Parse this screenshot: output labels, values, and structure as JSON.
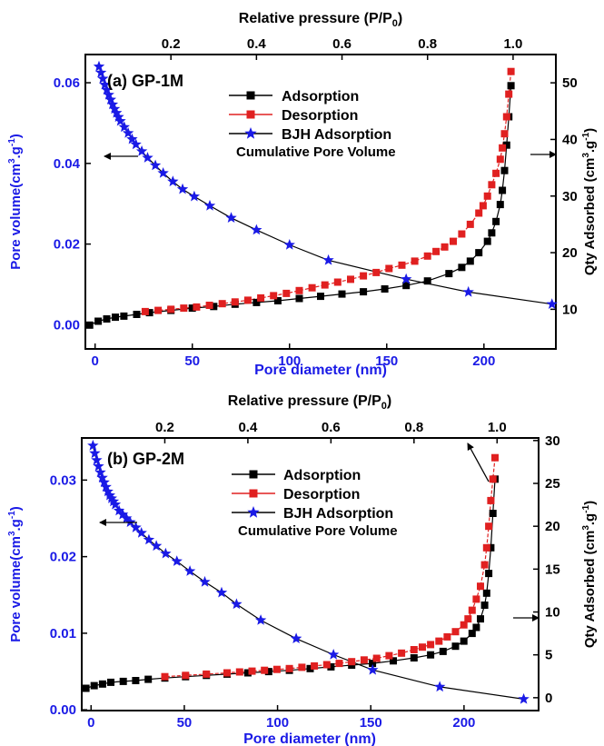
{
  "colors": {
    "left_axis": "#1a1ae6",
    "right_axis": "#000000",
    "adsorption": "#000000",
    "desorption": "#e02020",
    "bjh": "#1a1ae6"
  },
  "chart_data": [
    {
      "type": "line",
      "panel_label": "(a) GP-1M",
      "xlabel": "Pore diameter (nm)",
      "x2label": "Relative pressure (P/P0)",
      "ylabel": "Pore volume(cm3.g-1)",
      "y2label": "Qty Adsorbed (cm3.g-1)",
      "xlim": [
        -5,
        237
      ],
      "ylim": [
        -0.006,
        0.067
      ],
      "x2lim": [
        0.0,
        1.1
      ],
      "y2lim": [
        3,
        55
      ],
      "x_ticks": [
        0,
        50,
        100,
        150,
        200
      ],
      "y_ticks": [
        0.0,
        0.02,
        0.04,
        0.06
      ],
      "y_tick_labels": [
        "0.00",
        "0.02",
        "0.04",
        "0.06"
      ],
      "x2_ticks": [
        0.2,
        0.4,
        0.6,
        0.8,
        1.0
      ],
      "y2_ticks": [
        10,
        20,
        30,
        40,
        50
      ],
      "grid": false,
      "legend_position": "top-center",
      "legend": [
        "Adsorption",
        "Desorption",
        "BJH Adsorption",
        "Cumulative Pore Volume"
      ],
      "series": [
        {
          "name": "Adsorption",
          "axis": "right",
          "marker": "square",
          "x": [
            0.01,
            0.03,
            0.05,
            0.07,
            0.09,
            0.12,
            0.15,
            0.2,
            0.25,
            0.3,
            0.35,
            0.4,
            0.45,
            0.5,
            0.55,
            0.6,
            0.65,
            0.7,
            0.75,
            0.8,
            0.85,
            0.88,
            0.9,
            0.92,
            0.94,
            0.95,
            0.96,
            0.97,
            0.975,
            0.98,
            0.985,
            0.99,
            0.995
          ],
          "y": [
            7.2,
            7.9,
            8.3,
            8.6,
            8.8,
            9.1,
            9.4,
            9.8,
            10.2,
            10.5,
            10.9,
            11.2,
            11.5,
            11.9,
            12.3,
            12.7,
            13.1,
            13.6,
            14.2,
            15.0,
            16.3,
            17.4,
            18.5,
            20.0,
            22.0,
            23.5,
            25.5,
            28.5,
            31.0,
            34.5,
            39.0,
            44.0,
            49.5
          ]
        },
        {
          "name": "Desorption",
          "axis": "right",
          "marker": "square",
          "x": [
            0.995,
            0.99,
            0.985,
            0.98,
            0.975,
            0.97,
            0.96,
            0.95,
            0.94,
            0.93,
            0.92,
            0.9,
            0.88,
            0.86,
            0.84,
            0.82,
            0.8,
            0.77,
            0.74,
            0.71,
            0.68,
            0.65,
            0.62,
            0.59,
            0.56,
            0.53,
            0.5,
            0.47,
            0.44,
            0.41,
            0.38,
            0.35,
            0.32,
            0.29,
            0.26,
            0.23,
            0.2,
            0.17,
            0.14
          ],
          "y": [
            52.0,
            48.0,
            44.0,
            41.0,
            38.5,
            36.5,
            34.0,
            32.0,
            30.0,
            28.3,
            27.0,
            25.0,
            23.3,
            22.0,
            21.0,
            20.2,
            19.4,
            18.5,
            17.8,
            17.2,
            16.5,
            15.9,
            15.3,
            14.8,
            14.3,
            13.8,
            13.3,
            12.8,
            12.4,
            12.0,
            11.6,
            11.3,
            11.0,
            10.7,
            10.4,
            10.2,
            10.0,
            9.8,
            9.6
          ]
        },
        {
          "name": "BJH Adsorption",
          "axis": "left",
          "marker": "star",
          "x": [
            2,
            3,
            4,
            5,
            6,
            7,
            8,
            9,
            10,
            11,
            12,
            13,
            15,
            17,
            19,
            21,
            24,
            27,
            31,
            35,
            40,
            45,
            51,
            59,
            70,
            83,
            100,
            120,
            160,
            192,
            235
          ],
          "y": [
            0.064,
            0.0625,
            0.061,
            0.0595,
            0.0582,
            0.057,
            0.0558,
            0.0546,
            0.0535,
            0.0525,
            0.0515,
            0.0505,
            0.049,
            0.0475,
            0.046,
            0.0447,
            0.043,
            0.0414,
            0.0395,
            0.0376,
            0.0355,
            0.0336,
            0.0318,
            0.0295,
            0.0265,
            0.0235,
            0.0198,
            0.016,
            0.0113,
            0.0081,
            0.0051
          ]
        }
      ]
    },
    {
      "type": "line",
      "panel_label": "(b) GP-2M",
      "xlabel": "Pore diameter (nm)",
      "x2label": "Relative pressure (P/P0)",
      "ylabel": "Pore volume(cm3.g-1)",
      "y2label": "Qty Adsorbed (cm3.g-1)",
      "xlim": [
        -5,
        240
      ],
      "ylim": [
        -0.0001,
        0.0355
      ],
      "x2lim": [
        0.0,
        1.1
      ],
      "y2lim": [
        -1.5,
        30.3
      ],
      "x_ticks": [
        0,
        50,
        100,
        150,
        200
      ],
      "y_ticks": [
        0.0,
        0.01,
        0.02,
        0.03
      ],
      "y_tick_labels": [
        "0.00",
        "0.01",
        "0.02",
        "0.03"
      ],
      "x2_ticks": [
        0.2,
        0.4,
        0.6,
        0.8,
        1.0
      ],
      "y2_ticks": [
        0,
        5,
        10,
        15,
        20,
        25,
        30
      ],
      "grid": false,
      "legend_position": "top-center",
      "legend": [
        "Adsorption",
        "Desorption",
        "BJH Adsorption",
        "Cumulative Pore Volume"
      ],
      "series": [
        {
          "name": "Adsorption",
          "axis": "right",
          "marker": "square",
          "x": [
            0.01,
            0.03,
            0.05,
            0.07,
            0.1,
            0.13,
            0.16,
            0.2,
            0.25,
            0.3,
            0.35,
            0.4,
            0.45,
            0.5,
            0.55,
            0.6,
            0.65,
            0.7,
            0.75,
            0.8,
            0.84,
            0.87,
            0.9,
            0.92,
            0.94,
            0.95,
            0.96,
            0.97,
            0.975,
            0.98,
            0.985,
            0.99,
            0.995
          ],
          "y": [
            1.1,
            1.4,
            1.6,
            1.8,
            1.9,
            2.0,
            2.15,
            2.3,
            2.45,
            2.6,
            2.75,
            2.9,
            3.05,
            3.2,
            3.4,
            3.6,
            3.8,
            4.0,
            4.3,
            4.65,
            5.0,
            5.4,
            6.0,
            6.6,
            7.5,
            8.2,
            9.2,
            10.8,
            12.2,
            14.5,
            17.5,
            21.5,
            25.5
          ]
        },
        {
          "name": "Desorption",
          "axis": "right",
          "marker": "square",
          "x": [
            0.995,
            0.99,
            0.985,
            0.98,
            0.975,
            0.97,
            0.96,
            0.95,
            0.94,
            0.93,
            0.92,
            0.9,
            0.88,
            0.86,
            0.84,
            0.82,
            0.8,
            0.77,
            0.74,
            0.71,
            0.68,
            0.65,
            0.62,
            0.59,
            0.56,
            0.53,
            0.5,
            0.47,
            0.44,
            0.41,
            0.38,
            0.35,
            0.3,
            0.25,
            0.2
          ],
          "y": [
            28.0,
            25.5,
            23.0,
            20.0,
            17.5,
            15.5,
            13.0,
            11.5,
            10.2,
            9.2,
            8.5,
            7.7,
            7.1,
            6.6,
            6.2,
            5.9,
            5.6,
            5.2,
            4.9,
            4.6,
            4.4,
            4.2,
            4.0,
            3.85,
            3.7,
            3.55,
            3.4,
            3.3,
            3.2,
            3.1,
            3.0,
            2.9,
            2.75,
            2.6,
            2.45
          ]
        },
        {
          "name": "BJH Adsorption",
          "axis": "left",
          "marker": "star",
          "x": [
            1,
            2,
            3,
            4,
            5,
            6,
            7,
            8,
            9,
            10,
            11,
            12,
            13,
            15,
            17,
            19,
            21,
            24,
            27,
            31,
            35,
            40,
            46,
            53,
            61,
            70,
            78,
            91,
            110,
            130,
            151,
            187,
            232
          ],
          "y": [
            0.0345,
            0.0335,
            0.0326,
            0.0318,
            0.031,
            0.0303,
            0.0297,
            0.0291,
            0.0285,
            0.028,
            0.0276,
            0.0272,
            0.0268,
            0.026,
            0.0255,
            0.025,
            0.0245,
            0.0238,
            0.0231,
            0.0222,
            0.0214,
            0.0204,
            0.0194,
            0.0181,
            0.0167,
            0.0153,
            0.0138,
            0.0117,
            0.0093,
            0.0072,
            0.0052,
            0.003,
            0.0014
          ]
        }
      ]
    }
  ]
}
